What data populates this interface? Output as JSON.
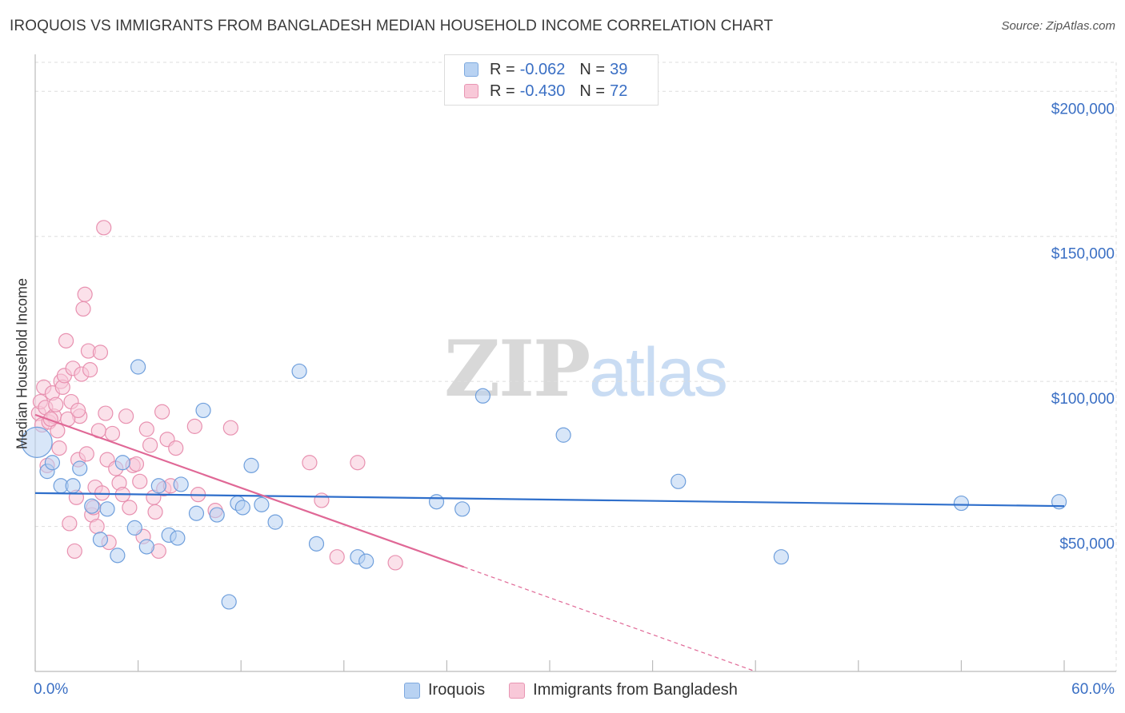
{
  "header": {
    "title": "IROQUOIS VS IMMIGRANTS FROM BANGLADESH MEDIAN HOUSEHOLD INCOME CORRELATION CHART",
    "source": "Source: ZipAtlas.com"
  },
  "watermark": {
    "zip": "ZIP",
    "atlas": "atlas"
  },
  "legend_top": {
    "rows": [
      {
        "r_label": "R =",
        "r_value": "-0.062",
        "n_label": "N =",
        "n_value": "39"
      },
      {
        "r_label": "R =",
        "r_value": "-0.430",
        "n_label": "N =",
        "n_value": "72"
      }
    ]
  },
  "colors": {
    "iroquois_fill": "#b8d2f2",
    "iroquois_stroke": "#6f9fdc",
    "iroquois_line": "#2f6fcb",
    "bangladesh_fill": "#f8c8d8",
    "bangladesh_stroke": "#e891b0",
    "bangladesh_line": "#e06896",
    "tick_label": "#3a6fc4",
    "grid": "#dddddd"
  },
  "chart_data": {
    "type": "scatter",
    "title": "IROQUOIS VS IMMIGRANTS FROM BANGLADESH MEDIAN HOUSEHOLD INCOME CORRELATION CHART",
    "xlabel": "",
    "ylabel": "Median Household Income",
    "xlim": [
      0,
      60
    ],
    "ylim": [
      0,
      210000
    ],
    "x_tick_labels": [
      "0.0%",
      "60.0%"
    ],
    "y_ticks": [
      {
        "value": 50000,
        "label": "$50,000"
      },
      {
        "value": 100000,
        "label": "$100,000"
      },
      {
        "value": 150000,
        "label": "$150,000"
      },
      {
        "value": 200000,
        "label": "$200,000"
      }
    ],
    "grid": true,
    "legend_position": "bottom",
    "series": [
      {
        "name": "Iroquois",
        "trend": {
          "x0": 0,
          "y0": 61500,
          "x1": 60,
          "y1": 57000,
          "dashed_from": null
        },
        "points": [
          [
            0.1,
            79000,
            "big"
          ],
          [
            0.7,
            69000
          ],
          [
            1.0,
            72000
          ],
          [
            1.5,
            64000
          ],
          [
            2.2,
            64000
          ],
          [
            2.6,
            70000
          ],
          [
            3.3,
            57000
          ],
          [
            3.8,
            45500
          ],
          [
            4.2,
            56000
          ],
          [
            4.8,
            40000
          ],
          [
            5.1,
            72000
          ],
          [
            5.8,
            49500
          ],
          [
            6.0,
            105000
          ],
          [
            6.5,
            43000
          ],
          [
            7.2,
            64000
          ],
          [
            7.8,
            47000
          ],
          [
            8.3,
            46000
          ],
          [
            8.5,
            64500
          ],
          [
            9.4,
            54500
          ],
          [
            9.8,
            90000
          ],
          [
            10.6,
            54000
          ],
          [
            11.3,
            24000
          ],
          [
            11.8,
            58000
          ],
          [
            12.1,
            56500
          ],
          [
            12.6,
            71000
          ],
          [
            13.2,
            57500
          ],
          [
            14.0,
            51500
          ],
          [
            15.4,
            103500
          ],
          [
            16.4,
            44000
          ],
          [
            18.8,
            39500
          ],
          [
            19.3,
            38000
          ],
          [
            23.4,
            58500
          ],
          [
            24.9,
            56000
          ],
          [
            26.1,
            95000
          ],
          [
            30.8,
            81500
          ],
          [
            37.5,
            65500
          ],
          [
            43.5,
            39500
          ],
          [
            54.0,
            58000
          ],
          [
            59.7,
            58500
          ]
        ]
      },
      {
        "name": "Immigrants from Bangladesh",
        "trend": {
          "x0": 0,
          "y0": 88500,
          "x1": 25,
          "y1": 36000,
          "dashed_to_x": 42,
          "dashed_to_y": 0
        },
        "points": [
          [
            0.2,
            89000
          ],
          [
            0.3,
            93000
          ],
          [
            0.4,
            85000
          ],
          [
            0.5,
            98000
          ],
          [
            0.6,
            91000
          ],
          [
            0.8,
            86000
          ],
          [
            1.0,
            96000
          ],
          [
            1.1,
            88000
          ],
          [
            1.2,
            92000
          ],
          [
            0.7,
            71000
          ],
          [
            1.3,
            83000
          ],
          [
            1.4,
            77000
          ],
          [
            1.5,
            100000
          ],
          [
            1.6,
            98000
          ],
          [
            1.7,
            102000
          ],
          [
            1.8,
            114000
          ],
          [
            2.0,
            51000
          ],
          [
            2.1,
            93000
          ],
          [
            2.2,
            104500
          ],
          [
            2.3,
            41500
          ],
          [
            2.4,
            60000
          ],
          [
            2.5,
            73000
          ],
          [
            2.6,
            88000
          ],
          [
            2.7,
            102500
          ],
          [
            2.8,
            125000
          ],
          [
            2.9,
            130000
          ],
          [
            3.0,
            75000
          ],
          [
            3.1,
            110500
          ],
          [
            3.2,
            104000
          ],
          [
            3.3,
            54000
          ],
          [
            3.4,
            56500
          ],
          [
            3.5,
            63500
          ],
          [
            3.6,
            50000
          ],
          [
            3.7,
            83000
          ],
          [
            3.8,
            110000
          ],
          [
            3.9,
            61500
          ],
          [
            4.0,
            153000
          ],
          [
            4.1,
            89000
          ],
          [
            4.2,
            73000
          ],
          [
            4.3,
            44500
          ],
          [
            4.5,
            82000
          ],
          [
            4.7,
            70000
          ],
          [
            4.9,
            65000
          ],
          [
            5.1,
            61000
          ],
          [
            5.3,
            88000
          ],
          [
            5.5,
            56500
          ],
          [
            5.7,
            71000
          ],
          [
            5.9,
            71500
          ],
          [
            6.1,
            65500
          ],
          [
            6.3,
            46500
          ],
          [
            6.5,
            83500
          ],
          [
            6.7,
            78000
          ],
          [
            6.9,
            60000
          ],
          [
            7.0,
            55000
          ],
          [
            7.2,
            41500
          ],
          [
            7.4,
            89500
          ],
          [
            7.5,
            63000
          ],
          [
            7.7,
            80000
          ],
          [
            7.9,
            64000
          ],
          [
            8.2,
            77000
          ],
          [
            9.3,
            84500
          ],
          [
            9.5,
            61000
          ],
          [
            10.5,
            55500
          ],
          [
            11.4,
            84000
          ],
          [
            16.0,
            72000
          ],
          [
            16.7,
            59000
          ],
          [
            17.6,
            39500
          ],
          [
            18.8,
            72000
          ],
          [
            21.0,
            37500
          ],
          [
            0.9,
            87000
          ],
          [
            1.9,
            87000
          ],
          [
            2.5,
            90000
          ]
        ]
      }
    ]
  },
  "bottom_legend": {
    "items": [
      {
        "label": "Iroquois"
      },
      {
        "label": "Immigrants from Bangladesh"
      }
    ]
  }
}
